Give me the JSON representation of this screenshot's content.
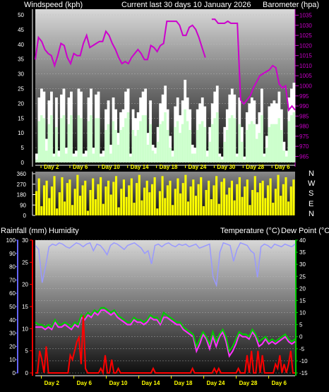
{
  "header": {
    "left": "Windspeed (kph)",
    "center": "Current last 30 days 10 January 2026",
    "right": "Barometer (hpa)"
  },
  "compass": [
    "N",
    "W",
    "S",
    "E",
    "N"
  ],
  "lower_header": {
    "left1": "Rainfall (mm)",
    "left2": "Humidity",
    "right1": "Temperature (°C)",
    "right2": "Dew Point (°C)"
  },
  "colors": {
    "wind": "#ccffcc",
    "gust": "#ffffff",
    "barometer": "#cc00cc",
    "direction": "#ffff00",
    "humidity": "#9999ff",
    "temperature": "#00cc00",
    "dewpoint": "#ff33ff",
    "rain": "#ff0000",
    "axis_rain": "#ff0000",
    "axis_humidity": "#6666ff",
    "axis_temp": "#00cc00"
  },
  "chart_data": [
    {
      "type": "area",
      "name": "wind_barometer",
      "x_ticks": [
        "Day 2",
        "Day 6",
        "Day 10",
        "Day 14",
        "Day 18",
        "Day 24",
        "Day 30",
        "Day 28",
        "Day 6"
      ],
      "ylabel": "Windspeed (kph)",
      "ylim": [
        0,
        50
      ],
      "y_ticks": [
        0,
        5,
        10,
        15,
        20,
        25,
        30,
        35,
        40,
        45,
        50
      ],
      "y2label": "Barometer (hpa)",
      "y2lim": [
        962,
        1038
      ],
      "y2_ticks": [
        965,
        970,
        975,
        980,
        985,
        990,
        995,
        1000,
        1005,
        1010,
        1015,
        1020,
        1025,
        1030,
        1035
      ],
      "series": [
        {
          "name": "Gust",
          "values": [
            3,
            22,
            25,
            24,
            8,
            21,
            24,
            3,
            22,
            4,
            23,
            25,
            5,
            22,
            24,
            3,
            4,
            25,
            24,
            3,
            4,
            22,
            25,
            5,
            23,
            24,
            3,
            4,
            18,
            21,
            6,
            22,
            18,
            10,
            17,
            18,
            24,
            25,
            3,
            18,
            15,
            17,
            22,
            24,
            25,
            10,
            21,
            6,
            5,
            12,
            20,
            23,
            26,
            18,
            9,
            4,
            19,
            22,
            16,
            21,
            28,
            22,
            18,
            6,
            5,
            18,
            20,
            22,
            19,
            4,
            12,
            20,
            24,
            26,
            3,
            2,
            12,
            18,
            23,
            25,
            23,
            3,
            22,
            12,
            2,
            17,
            20,
            22,
            21,
            13,
            17,
            25,
            3,
            9,
            19,
            20,
            21,
            20,
            24,
            18,
            7,
            4,
            22,
            25,
            27
          ]
        },
        {
          "name": "Wind",
          "values": [
            1,
            14,
            16,
            15,
            4,
            13,
            16,
            2,
            12,
            2,
            15,
            16,
            3,
            13,
            16,
            2,
            2,
            16,
            15,
            2,
            2,
            14,
            16,
            3,
            15,
            15,
            2,
            2,
            11,
            13,
            3,
            14,
            11,
            6,
            11,
            12,
            15,
            17,
            2,
            11,
            9,
            11,
            14,
            16,
            16,
            6,
            13,
            4,
            3,
            7,
            13,
            14,
            17,
            11,
            5,
            2,
            12,
            14,
            10,
            13,
            18,
            14,
            11,
            3,
            3,
            11,
            13,
            14,
            12,
            2,
            7,
            13,
            15,
            17,
            2,
            1,
            7,
            11,
            15,
            16,
            15,
            2,
            13,
            7,
            1,
            11,
            13,
            14,
            13,
            8,
            10,
            16,
            2,
            5,
            12,
            13,
            13,
            13,
            15,
            11,
            4,
            2,
            14,
            16,
            17
          ]
        },
        {
          "name": "Barometer",
          "values": [
            1013,
            1024,
            1022,
            1018,
            1016,
            1015,
            1010,
            1015,
            1021,
            1020,
            1014,
            1011,
            1016,
            1015,
            1015,
            1021,
            1025,
            1019,
            1020,
            1021,
            1022,
            1022,
            1027,
            1025,
            1021,
            1018,
            1014,
            1011,
            1012,
            1011,
            1014,
            1016,
            1018,
            1016,
            1013,
            1013,
            1020,
            1019,
            1017,
            1020,
            1021,
            1032,
            1032,
            1032,
            1032,
            1030,
            1025,
            1025,
            1029,
            1030,
            1028,
            1024,
            1019,
            1014,
            null,
            1033,
            1033,
            1031,
            1031,
            1031,
            1032,
            1031,
            1031,
            1031,
            993,
            991,
            993,
            995,
            999,
            1002,
            1005,
            1006,
            1007,
            1008,
            1010,
            1009,
            1001,
            999,
            1000,
            988,
            990,
            988
          ]
        }
      ]
    },
    {
      "type": "bar",
      "name": "wind_direction",
      "ylim": [
        0,
        360
      ],
      "y_ticks": [
        0,
        90,
        180,
        270,
        360
      ],
      "values": [
        210,
        320,
        80,
        260,
        300,
        150,
        250,
        340,
        60,
        200,
        330,
        120,
        280,
        310,
        90,
        230,
        350,
        170,
        260,
        300,
        40,
        220,
        320,
        140,
        270,
        330,
        100,
        250,
        300,
        180,
        290,
        340,
        70,
        230,
        310,
        160,
        260,
        320,
        110,
        280,
        350,
        130,
        240,
        300,
        200,
        270,
        330,
        60,
        210,
        340,
        150,
        260,
        300,
        90,
        230,
        320,
        190,
        280,
        350,
        120,
        250,
        310,
        170,
        270,
        330,
        80,
        220,
        300,
        140,
        260,
        340,
        100,
        290,
        320,
        180,
        240,
        300,
        130,
        270,
        330,
        160,
        250,
        310,
        90,
        220,
        340,
        200,
        280,
        300,
        150,
        260,
        320,
        110,
        230,
        350,
        170,
        270,
        330,
        120,
        250,
        310
      ]
    },
    {
      "type": "line",
      "name": "rain_humidity_temperature",
      "x_ticks": [
        "Day 2",
        "Day 6",
        "Day 10",
        "Day 14",
        "Day 18",
        "Day 24",
        "Day 28",
        "Day 6"
      ],
      "ylabel": "Rainfall (mm)",
      "ylim": [
        0,
        30
      ],
      "y_ticks": [
        0,
        5,
        10,
        15,
        20,
        25,
        30
      ],
      "humidity_ticks": [
        0,
        10,
        20,
        30,
        40,
        50,
        60,
        70,
        80,
        90,
        100
      ],
      "y2label": "Temperature (°C)",
      "y2lim": [
        -15,
        40
      ],
      "y2_ticks": [
        -15,
        -10,
        -5,
        0,
        5,
        10,
        15,
        20,
        25,
        30,
        35,
        40
      ],
      "series": [
        {
          "name": "Humidity",
          "values": [
            96,
            93,
            68,
            80,
            95,
            97,
            96,
            98,
            97,
            95,
            94,
            96,
            98,
            97,
            95,
            97,
            98,
            92,
            97,
            96,
            93,
            89,
            96,
            98,
            97,
            95,
            93,
            96,
            97,
            98,
            96,
            94,
            90,
            92,
            82,
            96,
            97,
            95,
            97,
            98,
            96,
            95,
            97,
            96,
            97,
            95,
            96,
            97,
            94,
            95,
            96,
            97,
            72,
            66,
            91,
            98,
            97,
            96,
            84,
            93,
            98,
            97,
            96,
            92,
            90,
            72,
            95,
            97,
            96,
            94,
            97,
            96,
            95,
            97,
            96,
            95,
            97
          ]
        },
        {
          "name": "Temperature",
          "values": [
            6,
            5,
            5,
            4,
            5,
            4,
            7,
            5,
            5,
            6,
            5,
            4,
            6,
            5,
            9,
            8,
            10,
            9,
            11,
            10,
            12,
            12,
            11,
            10,
            11,
            9,
            8,
            7,
            6,
            6,
            8,
            7,
            7,
            6,
            7,
            9,
            8,
            8,
            6,
            10,
            9,
            8,
            7,
            6,
            6,
            4,
            3,
            2,
            1,
            -4,
            -1,
            2,
            0,
            -3,
            2,
            -2,
            1,
            3,
            0,
            -6,
            -4,
            -1,
            2,
            1,
            1,
            0,
            3,
            1,
            -2,
            -1,
            0,
            -2,
            -1,
            -2,
            -1,
            0,
            1,
            -1,
            -2,
            -1
          ]
        },
        {
          "name": "Dew Point",
          "values": [
            4,
            4,
            4,
            3,
            4,
            3,
            6,
            4,
            4,
            5,
            4,
            3,
            5,
            4,
            8,
            7,
            9,
            8,
            10,
            9,
            11,
            11,
            10,
            9,
            10,
            8,
            7,
            6,
            5,
            5,
            7,
            6,
            6,
            5,
            6,
            8,
            7,
            7,
            5,
            8,
            8,
            7,
            6,
            5,
            5,
            3,
            2,
            1,
            0,
            -6,
            -3,
            1,
            -1,
            -5,
            0,
            -4,
            0,
            2,
            -2,
            -8,
            -6,
            -3,
            1,
            0,
            0,
            -1,
            2,
            0,
            -4,
            -3,
            -1,
            -3,
            -2,
            -3,
            -2,
            -1,
            0,
            -2,
            -3,
            -2
          ]
        },
        {
          "name": "Rainfall",
          "values": [
            0,
            0,
            5,
            3,
            0,
            6,
            0,
            0,
            0,
            0,
            0,
            0,
            0,
            0,
            0,
            0,
            4,
            3,
            5,
            7,
            8,
            2,
            13,
            1,
            0,
            0,
            0,
            0,
            0,
            0,
            1,
            0,
            4,
            0,
            0,
            3,
            0,
            0,
            1,
            0,
            0,
            0,
            0,
            0,
            0,
            0,
            0,
            0,
            0,
            0,
            0,
            0,
            0,
            0,
            1,
            0,
            0,
            0,
            0,
            0,
            0,
            0,
            0,
            0,
            0,
            0,
            0,
            0,
            0,
            0,
            0,
            0,
            1,
            0,
            0,
            0,
            0,
            0,
            0,
            0,
            0,
            0,
            1,
            0,
            1,
            0,
            0,
            0,
            0,
            0,
            0,
            0,
            0,
            1,
            0,
            0,
            0,
            4,
            0,
            5,
            0,
            0,
            5,
            0,
            4,
            0,
            0,
            0,
            0,
            0,
            2,
            1,
            4,
            0,
            2,
            0,
            2,
            5,
            0,
            0
          ]
        }
      ]
    }
  ]
}
